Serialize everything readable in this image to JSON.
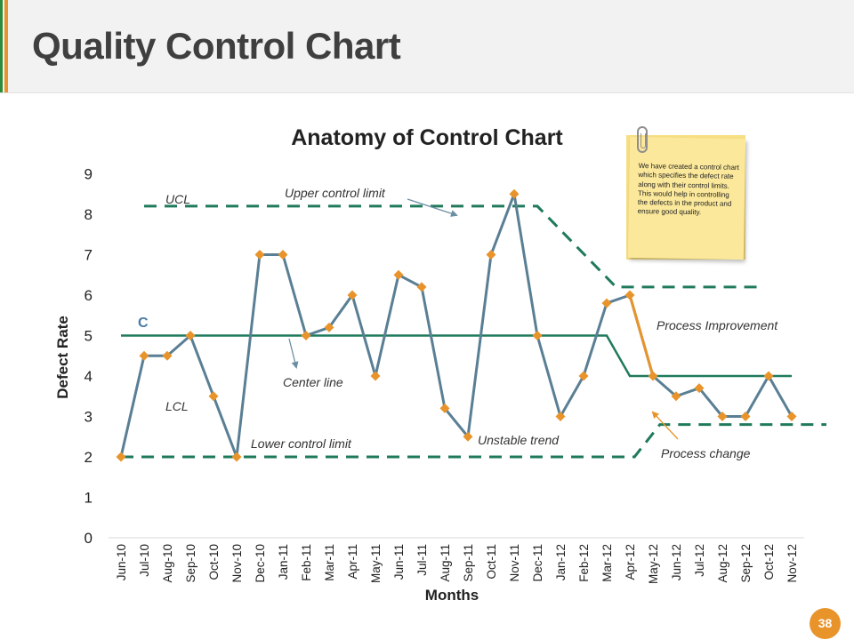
{
  "page": {
    "title": "Quality Control Chart",
    "page_number": "38",
    "note_text": "We have created a control chart which specifies the defect rate along with their control limits. This would help in controlling the defects in the product and ensure good quality."
  },
  "colors": {
    "series": "#5a7f94",
    "marker": "#e8942b",
    "limit": "#1f7a5c",
    "orange_line": "#e8942b",
    "title_text": "#3f3f3f"
  },
  "chart_data": {
    "type": "line",
    "title": "Anatomy of Control Chart",
    "xlabel": "Months",
    "ylabel": "Defect Rate",
    "ylim": [
      0,
      9
    ],
    "yticks": [
      0,
      1,
      2,
      3,
      4,
      5,
      6,
      7,
      8,
      9
    ],
    "categories": [
      "Jun-10",
      "Jul-10",
      "Aug-10",
      "Sep-10",
      "Oct-10",
      "Nov-10",
      "Dec-10",
      "Jan-11",
      "Feb-11",
      "Mar-11",
      "Apr-11",
      "May-11",
      "Jun-11",
      "Jul-11",
      "Aug-11",
      "Sep-11",
      "Oct-11",
      "Nov-11",
      "Dec-11",
      "Jan-12",
      "Feb-12",
      "Mar-12",
      "Apr-12",
      "May-12",
      "Jun-12",
      "Jul-12",
      "Aug-12",
      "Sep-12",
      "Oct-12",
      "Nov-12"
    ],
    "series": [
      {
        "name": "Defect Rate",
        "values": [
          2,
          4.5,
          4.5,
          5,
          3.5,
          2,
          7,
          7,
          5,
          5.2,
          6,
          4,
          6.5,
          6.2,
          3.2,
          2.5,
          7,
          8.5,
          5,
          3,
          4,
          5.8,
          6,
          4,
          3.5,
          3.7,
          3,
          3,
          4,
          3
        ]
      }
    ],
    "limits": {
      "ucl": {
        "name": "UCL",
        "points": [
          [
            1,
            8.2
          ],
          [
            18,
            8.2
          ],
          [
            21.4,
            6.2
          ],
          [
            27.5,
            6.2
          ]
        ]
      },
      "center": {
        "name": "C",
        "points": [
          [
            0,
            5
          ],
          [
            21,
            5
          ],
          [
            22,
            4
          ],
          [
            29,
            4
          ]
        ]
      },
      "lcl": {
        "name": "LCL",
        "points": [
          [
            0,
            2
          ],
          [
            22.2,
            2
          ],
          [
            23.3,
            2.8
          ],
          [
            30.5,
            2.8
          ]
        ]
      },
      "orange_segment": {
        "points": [
          [
            22,
            6
          ],
          [
            23,
            4
          ]
        ]
      }
    },
    "annotations": {
      "ucl_label": "UCL",
      "c_label": "C",
      "lcl_label": "LCL",
      "upper_control_limit": "Upper control limit",
      "center_line": "Center line",
      "lower_control_limit": "Lower control limit",
      "unstable_trend": "Unstable trend",
      "process_improvement": "Process Improvement",
      "process_change": "Process change"
    }
  }
}
